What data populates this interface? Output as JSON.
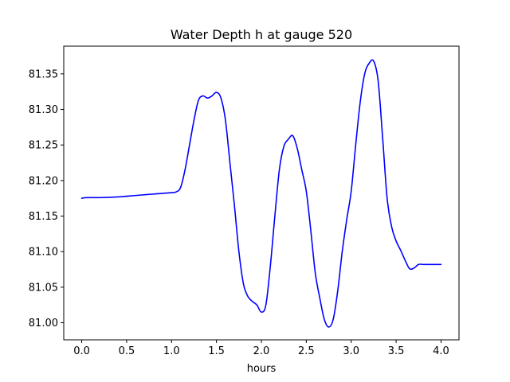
{
  "chart_data": {
    "type": "line",
    "title": "Water Depth h at gauge 520",
    "xlabel": "hours",
    "ylabel": "",
    "xlim": [
      -0.2,
      4.2
    ],
    "ylim": [
      80.976,
      81.389
    ],
    "xticks": [
      0.0,
      0.5,
      1.0,
      1.5,
      2.0,
      2.5,
      3.0,
      3.5,
      4.0
    ],
    "xtick_labels": [
      "0.0",
      "0.5",
      "1.0",
      "1.5",
      "2.0",
      "2.5",
      "3.0",
      "3.5",
      "4.0"
    ],
    "yticks": [
      81.0,
      81.05,
      81.1,
      81.15,
      81.2,
      81.25,
      81.3,
      81.35
    ],
    "ytick_labels": [
      "81.00",
      "81.05",
      "81.10",
      "81.15",
      "81.20",
      "81.25",
      "81.30",
      "81.35"
    ],
    "grid": false,
    "series": [
      {
        "color": "#0000ff",
        "x": [
          0.0,
          0.05,
          0.2,
          0.4,
          0.6,
          0.7,
          0.8,
          0.9,
          1.0,
          1.05,
          1.1,
          1.15,
          1.2,
          1.25,
          1.3,
          1.35,
          1.4,
          1.45,
          1.5,
          1.55,
          1.6,
          1.65,
          1.7,
          1.75,
          1.8,
          1.85,
          1.9,
          1.95,
          2.0,
          2.05,
          2.1,
          2.15,
          2.2,
          2.25,
          2.3,
          2.35,
          2.4,
          2.45,
          2.5,
          2.55,
          2.6,
          2.65,
          2.7,
          2.75,
          2.8,
          2.85,
          2.9,
          2.95,
          3.0,
          3.05,
          3.1,
          3.15,
          3.2,
          3.25,
          3.3,
          3.35,
          3.4,
          3.45,
          3.5,
          3.55,
          3.6,
          3.65,
          3.7,
          3.75,
          3.8,
          3.85,
          3.9,
          3.95,
          4.0
        ],
        "y": [
          81.175,
          81.176,
          81.176,
          81.177,
          81.179,
          81.18,
          81.181,
          81.182,
          81.183,
          81.184,
          81.19,
          81.215,
          81.25,
          81.285,
          81.313,
          81.319,
          81.316,
          81.319,
          81.324,
          81.316,
          81.285,
          81.225,
          81.165,
          81.1,
          81.055,
          81.037,
          81.03,
          81.025,
          81.015,
          81.025,
          81.08,
          81.15,
          81.215,
          81.248,
          81.258,
          81.263,
          81.245,
          81.215,
          81.185,
          81.13,
          81.07,
          81.035,
          81.005,
          80.994,
          81.005,
          81.045,
          81.1,
          81.145,
          81.185,
          81.25,
          81.31,
          81.35,
          81.365,
          81.368,
          81.34,
          81.26,
          81.175,
          81.135,
          81.115,
          81.102,
          81.088,
          81.076,
          81.077,
          81.082,
          81.082,
          81.082,
          81.082,
          81.082,
          81.082
        ]
      }
    ]
  }
}
